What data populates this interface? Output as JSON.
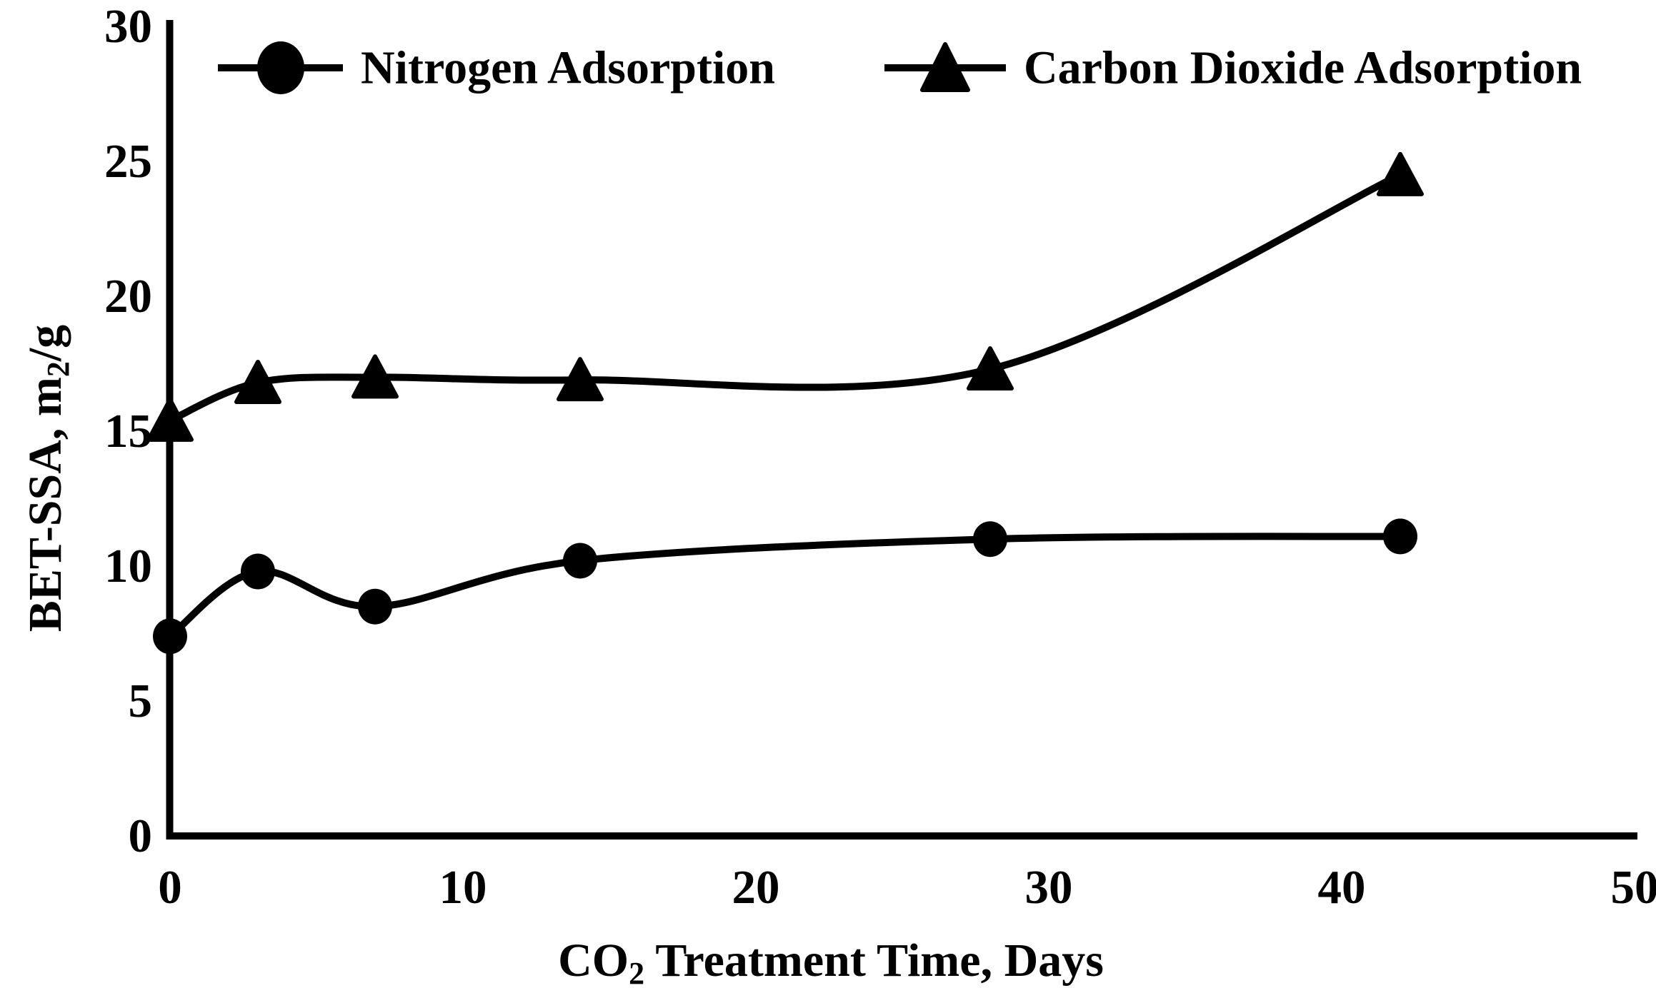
{
  "chart_data": {
    "type": "line",
    "title": "",
    "x": [
      0,
      3,
      7,
      14,
      28,
      42
    ],
    "series": [
      {
        "name": "Nitrogen Adsorption",
        "marker": "circle",
        "values": [
          7.4,
          9.8,
          8.5,
          10.2,
          11.0,
          11.1
        ]
      },
      {
        "name": "Carbon Dioxide Adsorption",
        "marker": "triangle",
        "values": [
          15.4,
          16.8,
          17.0,
          16.9,
          17.3,
          24.5
        ]
      }
    ],
    "xlabel": "CO2 Treatment Time, Days",
    "xlabel_parts": [
      {
        "text": "CO",
        "sub": false
      },
      {
        "text": "2",
        "sub": true
      },
      {
        "text": " Treatment Time, Days",
        "sub": false
      }
    ],
    "ylabel": "BET-SSA, m2/g",
    "ylabel_parts": [
      {
        "text": "BET-SSA, m",
        "sub": false
      },
      {
        "text": "2",
        "sub": true
      },
      {
        "text": "/g",
        "sub": false
      }
    ],
    "xlim": [
      0,
      50
    ],
    "ylim": [
      0,
      30
    ],
    "xticks": [
      0,
      10,
      20,
      30,
      40,
      50
    ],
    "yticks": [
      0,
      5,
      10,
      15,
      20,
      25,
      30
    ],
    "grid": false,
    "smooth": true,
    "legend_position": "top-inside",
    "line_color": "#000000",
    "marker_color": "#000000",
    "background_color": "#ffffff"
  }
}
